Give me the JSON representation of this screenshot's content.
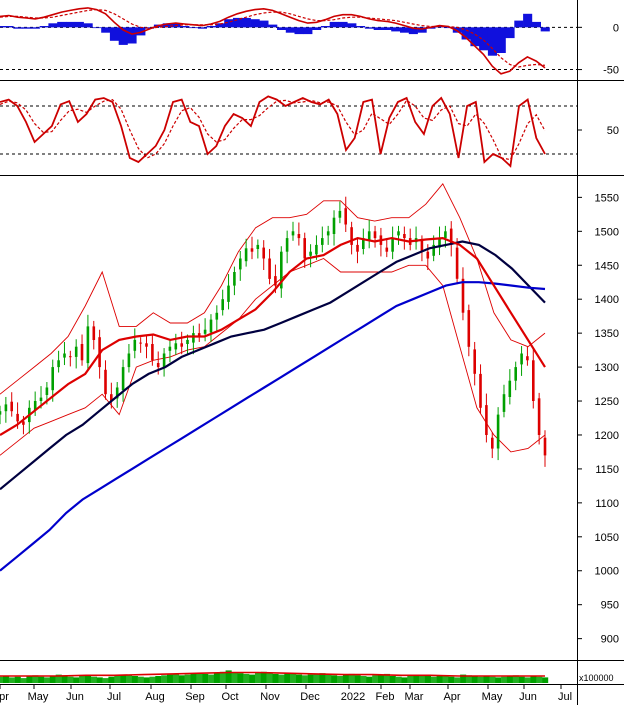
{
  "chart_data": [
    {
      "type": "line",
      "panel": "MACD",
      "yticks": [
        0,
        -50
      ],
      "ylim": [
        -60,
        30
      ],
      "series": [
        {
          "role": "macd",
          "color": "#cc0000",
          "values": [
            13,
            14,
            12,
            11,
            10,
            12,
            15,
            18,
            20,
            22,
            23,
            21,
            16,
            6,
            -3,
            -8,
            -6,
            -2,
            2,
            4,
            5,
            4,
            3,
            2,
            4,
            7,
            12,
            16,
            19,
            21,
            22,
            20,
            16,
            12,
            8,
            5,
            6,
            9,
            13,
            15,
            15,
            13,
            10,
            8,
            7,
            5,
            2,
            -1,
            -2,
            0,
            2,
            1,
            -4,
            -12,
            -22,
            -32,
            -46,
            -55,
            -52,
            -42,
            -35,
            -40,
            -48
          ]
        },
        {
          "role": "signal",
          "color": "#cc0000",
          "dash": true,
          "values": [
            12,
            13,
            13,
            12,
            11,
            11,
            12,
            14,
            16,
            18,
            20,
            21,
            20,
            16,
            10,
            4,
            0,
            -1,
            0,
            1,
            2,
            3,
            3,
            3,
            3,
            4,
            6,
            9,
            12,
            15,
            17,
            18,
            18,
            16,
            13,
            10,
            8,
            8,
            9,
            11,
            12,
            12,
            11,
            10,
            9,
            8,
            6,
            4,
            2,
            1,
            1,
            1,
            0,
            -3,
            -8,
            -15,
            -25,
            -36,
            -44,
            -47,
            -45,
            -44,
            -45
          ]
        }
      ]
    },
    {
      "type": "line",
      "panel": "Stochastic",
      "yticks": [
        50
      ],
      "ylim": [
        -5,
        110
      ],
      "series": [
        {
          "role": "k",
          "color": "#cc0000",
          "values": [
            85,
            88,
            80,
            60,
            35,
            45,
            55,
            82,
            86,
            60,
            70,
            88,
            90,
            85,
            55,
            15,
            10,
            20,
            30,
            50,
            85,
            88,
            60,
            55,
            20,
            30,
            55,
            70,
            65,
            55,
            85,
            92,
            88,
            80,
            85,
            90,
            85,
            82,
            88,
            70,
            25,
            40,
            85,
            88,
            20,
            65,
            85,
            90,
            60,
            45,
            80,
            90,
            70,
            15,
            80,
            85,
            10,
            20,
            15,
            5,
            80,
            88,
            40,
            20
          ]
        },
        {
          "role": "d",
          "color": "#cc0000",
          "dash": true,
          "values": [
            82,
            86,
            84,
            75,
            58,
            47,
            48,
            62,
            74,
            76,
            72,
            80,
            86,
            88,
            76,
            50,
            27,
            15,
            20,
            33,
            55,
            74,
            78,
            66,
            45,
            35,
            38,
            52,
            63,
            63,
            68,
            78,
            86,
            87,
            84,
            85,
            87,
            84,
            85,
            80,
            60,
            44,
            50,
            71,
            64,
            57,
            70,
            87,
            80,
            65,
            62,
            75,
            80,
            58,
            55,
            70,
            58,
            38,
            15,
            13,
            33,
            58,
            69,
            49
          ]
        }
      ]
    },
    {
      "type": "candlestick",
      "panel": "Price",
      "x_labels": [
        "pr",
        "May",
        "Jun",
        "Jul",
        "Aug",
        "Sep",
        "Oct",
        "Nov",
        "Dec",
        "2022",
        "Feb",
        "Mar",
        "Apr",
        "May",
        "Jun",
        "Jul"
      ],
      "yticks": [
        1550,
        1500,
        1450,
        1400,
        1350,
        1300,
        1250,
        1200,
        1150,
        1100,
        1050,
        1000,
        950,
        900
      ],
      "ylim": [
        870,
        1580
      ],
      "close": [
        1235,
        1245,
        1235,
        1220,
        1215,
        1240,
        1250,
        1255,
        1270,
        1300,
        1310,
        1320,
        1315,
        1330,
        1310,
        1360,
        1340,
        1300,
        1260,
        1250,
        1270,
        1300,
        1320,
        1340,
        1335,
        1330,
        1310,
        1300,
        1320,
        1330,
        1335,
        1330,
        1340,
        1350,
        1345,
        1355,
        1370,
        1380,
        1400,
        1420,
        1440,
        1460,
        1475,
        1470,
        1480,
        1460,
        1430,
        1420,
        1470,
        1490,
        1500,
        1490,
        1460,
        1470,
        1480,
        1490,
        1500,
        1520,
        1530,
        1510,
        1480,
        1470,
        1490,
        1500,
        1490,
        1480,
        1470,
        1490,
        1500,
        1490,
        1480,
        1490,
        1470,
        1460,
        1480,
        1490,
        1500,
        1480,
        1430,
        1380,
        1330,
        1290,
        1240,
        1200,
        1180,
        1230,
        1260,
        1280,
        1300,
        1320,
        1310,
        1250,
        1200,
        1170
      ],
      "series": [
        {
          "name": "",
          "color": "#000040",
          "role": "sma100",
          "values": [
            1120,
            1140,
            1160,
            1180,
            1200,
            1215,
            1235,
            1255,
            1275,
            1290,
            1300,
            1315,
            1325,
            1335,
            1345,
            1350,
            1355,
            1365,
            1375,
            1385,
            1395,
            1410,
            1425,
            1440,
            1455,
            1465,
            1475,
            1480,
            1485,
            1480,
            1465,
            1445,
            1420,
            1395
          ]
        },
        {
          "name": "",
          "color": "#0000cc",
          "role": "sma200",
          "values": [
            1000,
            1020,
            1040,
            1060,
            1085,
            1105,
            1120,
            1135,
            1150,
            1165,
            1180,
            1195,
            1210,
            1225,
            1240,
            1255,
            1270,
            1285,
            1300,
            1315,
            1330,
            1345,
            1360,
            1375,
            1390,
            1400,
            1410,
            1420,
            1425,
            1425,
            1423,
            1420,
            1417,
            1415
          ]
        },
        {
          "name": "",
          "color": "#dd0000",
          "role": "sma50",
          "values": [
            1200,
            1215,
            1235,
            1255,
            1275,
            1290,
            1325,
            1340,
            1345,
            1348,
            1340,
            1345,
            1345,
            1355,
            1370,
            1385,
            1410,
            1440,
            1460,
            1465,
            1480,
            1490,
            1485,
            1490,
            1485,
            1488,
            1490,
            1480,
            1460,
            1420,
            1380,
            1340,
            1300
          ]
        },
        {
          "name": "",
          "color": "#dd0000",
          "role": "bb-upper",
          "values": [
            1260,
            1280,
            1300,
            1320,
            1345,
            1390,
            1440,
            1360,
            1360,
            1380,
            1365,
            1365,
            1380,
            1420,
            1470,
            1505,
            1520,
            1520,
            1525,
            1545,
            1545,
            1520,
            1515,
            1520,
            1520,
            1540,
            1570,
            1520,
            1460,
            1380,
            1340,
            1330,
            1350
          ]
        },
        {
          "name": "",
          "color": "#dd0000",
          "role": "bb-lower",
          "values": [
            1170,
            1190,
            1210,
            1220,
            1230,
            1240,
            1260,
            1230,
            1300,
            1310,
            1315,
            1325,
            1330,
            1350,
            1370,
            1400,
            1420,
            1440,
            1450,
            1460,
            1440,
            1440,
            1440,
            1440,
            1450,
            1450,
            1420,
            1330,
            1240,
            1200,
            1175,
            1180,
            1200
          ]
        }
      ]
    },
    {
      "type": "bar",
      "panel": "Volume",
      "unit_label": "x100000",
      "ylim": [
        0,
        30
      ],
      "values": [
        9,
        10,
        8,
        9,
        7,
        10,
        11,
        9,
        8,
        10,
        12,
        11,
        9,
        8,
        10,
        11,
        9,
        8,
        7,
        9,
        10,
        11,
        12,
        10,
        9,
        8,
        9,
        10,
        11,
        12,
        13,
        11,
        12,
        14,
        15,
        13,
        12,
        14,
        16,
        18,
        15,
        14,
        13,
        12,
        15,
        16,
        14,
        13,
        12,
        14,
        13,
        12,
        11,
        12,
        13,
        14,
        12,
        11,
        10,
        12,
        13,
        11,
        10,
        9,
        11,
        12,
        13,
        10,
        9,
        8,
        10,
        11,
        12,
        10,
        9,
        11,
        10,
        9,
        8,
        12,
        11,
        10,
        9,
        10,
        9,
        8,
        9,
        10,
        11,
        9,
        8,
        10,
        9,
        8
      ],
      "series": [
        {
          "name": "",
          "color": "#dd0000",
          "role": "volume-ma",
          "values": [
            10,
            10,
            10,
            11,
            11,
            12,
            13,
            14,
            15,
            15,
            14,
            13,
            12,
            12,
            11,
            11,
            10,
            10,
            10,
            10
          ]
        }
      ]
    }
  ]
}
